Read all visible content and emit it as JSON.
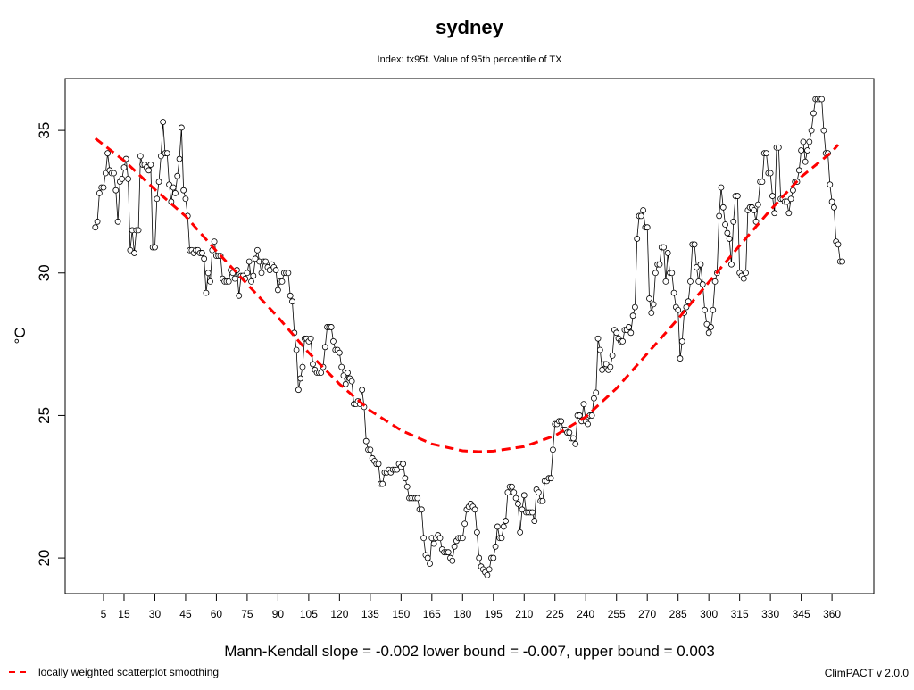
{
  "chart_data": {
    "type": "line",
    "title": "sydney",
    "subtitle": "Index: tx95t. Value of 95th percentile of TX",
    "ylabel": "°C",
    "annotation": "Mann-Kendall slope = -0.002   lower bound = -0.007,   upper bound = 0.003",
    "footer": "ClimPACT v 2.0.0",
    "legend": "bottom-left",
    "xlim": [
      -13.7,
      380.4
    ],
    "ylim": [
      18.75,
      36.82
    ],
    "xticks": [
      5,
      15,
      30,
      45,
      60,
      75,
      90,
      105,
      120,
      135,
      150,
      165,
      180,
      195,
      210,
      225,
      240,
      255,
      270,
      285,
      300,
      315,
      330,
      345,
      360
    ],
    "yticks": [
      20,
      25,
      30,
      35
    ],
    "series": [
      {
        "color": "#000000",
        "marker": "circle",
        "x": [
          1,
          2,
          3,
          4,
          5,
          6,
          7,
          8,
          9,
          10,
          11,
          12,
          13,
          14,
          15,
          16,
          17,
          18,
          19,
          20,
          21,
          22,
          23,
          24,
          25,
          26,
          27,
          28,
          29,
          30,
          31,
          32,
          33,
          34,
          35,
          36,
          37,
          38,
          39,
          40,
          41,
          42,
          43,
          44,
          45,
          46,
          47,
          48,
          49,
          50,
          51,
          52,
          53,
          54,
          55,
          56,
          57,
          58,
          59,
          60,
          61,
          62,
          63,
          64,
          65,
          66,
          67,
          68,
          69,
          70,
          71,
          72,
          73,
          74,
          75,
          76,
          77,
          78,
          79,
          80,
          81,
          82,
          83,
          84,
          85,
          86,
          87,
          88,
          89,
          90,
          91,
          92,
          93,
          94,
          95,
          96,
          97,
          98,
          99,
          100,
          101,
          102,
          103,
          104,
          105,
          106,
          107,
          108,
          109,
          110,
          111,
          112,
          113,
          114,
          115,
          116,
          117,
          118,
          119,
          120,
          121,
          122,
          123,
          124,
          125,
          126,
          127,
          128,
          129,
          130,
          131,
          132,
          133,
          134,
          135,
          136,
          137,
          138,
          139,
          140,
          141,
          142,
          143,
          144,
          145,
          146,
          147,
          148,
          149,
          150,
          151,
          152,
          153,
          154,
          155,
          156,
          157,
          158,
          159,
          160,
          161,
          162,
          163,
          164,
          165,
          166,
          167,
          168,
          169,
          170,
          171,
          172,
          173,
          174,
          175,
          176,
          177,
          178,
          179,
          180,
          181,
          182,
          183,
          184,
          185,
          186,
          187,
          188,
          189,
          190,
          191,
          192,
          193,
          194,
          195,
          196,
          197,
          198,
          199,
          200,
          201,
          202,
          203,
          204,
          205,
          206,
          207,
          208,
          209,
          210,
          211,
          212,
          213,
          214,
          215,
          216,
          217,
          218,
          219,
          220,
          221,
          222,
          223,
          224,
          225,
          226,
          227,
          228,
          229,
          230,
          231,
          232,
          233,
          234,
          235,
          236,
          237,
          238,
          239,
          240,
          241,
          242,
          243,
          244,
          245,
          246,
          247,
          248,
          249,
          250,
          251,
          252,
          253,
          254,
          255,
          256,
          257,
          258,
          259,
          260,
          261,
          262,
          263,
          264,
          265,
          266,
          267,
          268,
          269,
          270,
          271,
          272,
          273,
          274,
          275,
          276,
          277,
          278,
          279,
          280,
          281,
          282,
          283,
          284,
          285,
          286,
          287,
          288,
          289,
          290,
          291,
          292,
          293,
          294,
          295,
          296,
          297,
          298,
          299,
          300,
          301,
          302,
          303,
          304,
          305,
          306,
          307,
          308,
          309,
          310,
          311,
          312,
          313,
          314,
          315,
          316,
          317,
          318,
          319,
          320,
          321,
          322,
          323,
          324,
          325,
          326,
          327,
          328,
          329,
          330,
          331,
          332,
          333,
          334,
          335,
          336,
          337,
          338,
          339,
          340,
          341,
          342,
          343,
          344,
          345,
          346,
          347,
          348,
          349,
          350,
          351,
          352,
          353,
          354,
          355,
          356,
          357,
          358,
          359,
          360,
          361,
          362,
          363,
          364,
          365
        ],
        "values": [
          31.6,
          31.8,
          32.8,
          33.0,
          33.0,
          33.5,
          34.2,
          33.6,
          33.5,
          33.5,
          32.9,
          31.8,
          33.2,
          33.3,
          33.7,
          34.0,
          33.3,
          30.8,
          31.5,
          30.7,
          31.5,
          31.5,
          34.1,
          33.8,
          33.8,
          33.7,
          33.6,
          33.8,
          30.9,
          30.9,
          32.6,
          33.2,
          34.1,
          35.3,
          34.2,
          34.2,
          33.1,
          32.5,
          33.0,
          32.8,
          33.4,
          34.0,
          35.1,
          32.9,
          32.6,
          32.0,
          30.8,
          30.8,
          30.7,
          30.8,
          30.8,
          30.7,
          30.7,
          30.5,
          29.3,
          30.0,
          29.7,
          30.8,
          31.1,
          30.6,
          30.6,
          30.6,
          29.8,
          29.7,
          29.7,
          29.7,
          30.1,
          30.0,
          29.8,
          30.1,
          29.2,
          29.9,
          29.9,
          29.8,
          30.0,
          30.4,
          29.7,
          29.9,
          30.5,
          30.8,
          30.4,
          30.0,
          30.4,
          30.4,
          30.2,
          30.1,
          30.3,
          30.2,
          30.1,
          29.4,
          29.7,
          29.7,
          30.0,
          30.0,
          30.0,
          29.2,
          29.0,
          27.9,
          27.3,
          25.9,
          26.3,
          26.7,
          27.7,
          27.7,
          27.6,
          27.7,
          26.8,
          26.6,
          26.5,
          26.5,
          26.5,
          26.7,
          27.4,
          28.1,
          28.1,
          28.1,
          27.6,
          27.3,
          27.3,
          27.2,
          26.7,
          26.4,
          26.1,
          26.5,
          26.3,
          26.2,
          25.4,
          25.4,
          25.5,
          25.4,
          25.9,
          25.3,
          24.1,
          23.8,
          23.8,
          23.5,
          23.4,
          23.3,
          23.3,
          22.6,
          22.6,
          23.0,
          23.0,
          23.1,
          23.0,
          23.1,
          23.1,
          23.1,
          23.3,
          23.2,
          23.3,
          22.8,
          22.5,
          22.1,
          22.1,
          22.1,
          22.1,
          22.1,
          21.7,
          21.7,
          20.7,
          20.1,
          20.0,
          19.8,
          20.7,
          20.5,
          20.7,
          20.8,
          20.7,
          20.3,
          20.2,
          20.2,
          20.2,
          20.0,
          19.9,
          20.4,
          20.6,
          20.7,
          20.7,
          20.7,
          21.2,
          21.7,
          21.8,
          21.9,
          21.8,
          21.7,
          20.9,
          20.0,
          19.7,
          19.6,
          19.5,
          19.4,
          19.6,
          20.0,
          20.0,
          20.4,
          21.1,
          20.7,
          20.7,
          21.1,
          21.3,
          22.3,
          22.5,
          22.5,
          22.3,
          22.1,
          21.9,
          20.9,
          21.7,
          22.2,
          21.6,
          21.6,
          21.6,
          21.6,
          21.3,
          22.4,
          22.3,
          22.0,
          22.0,
          22.7,
          22.7,
          22.8,
          22.8,
          23.8,
          24.7,
          24.7,
          24.8,
          24.8,
          24.5,
          24.5,
          24.4,
          24.4,
          24.2,
          24.2,
          24.0,
          25.0,
          25.0,
          24.8,
          25.4,
          24.8,
          24.7,
          25.0,
          25.0,
          25.6,
          25.8,
          27.7,
          27.3,
          26.6,
          26.8,
          26.8,
          26.6,
          26.7,
          27.1,
          28.0,
          27.9,
          27.7,
          27.6,
          27.6,
          28.0,
          28.0,
          28.1,
          27.9,
          28.5,
          28.8,
          31.2,
          32.0,
          32.0,
          32.2,
          31.6,
          31.6,
          29.1,
          28.6,
          28.9,
          30.0,
          30.3,
          30.3,
          30.9,
          30.9,
          29.7,
          30.7,
          30.0,
          30.0,
          29.3,
          28.8,
          28.7,
          27.0,
          27.6,
          28.6,
          28.8,
          29.0,
          29.7,
          31.0,
          31.0,
          30.2,
          29.7,
          30.3,
          29.6,
          28.7,
          28.2,
          27.9,
          28.1,
          28.7,
          29.7,
          30.0,
          32.0,
          33.0,
          32.3,
          31.7,
          31.4,
          31.2,
          30.3,
          31.8,
          32.7,
          32.7,
          30.0,
          29.9,
          29.8,
          30.0,
          32.2,
          32.3,
          32.3,
          32.2,
          31.8,
          32.4,
          33.2,
          33.2,
          34.2,
          34.2,
          33.5,
          33.5,
          32.7,
          32.1,
          34.4,
          34.4,
          32.6,
          32.6,
          32.5,
          32.5,
          32.1,
          32.6,
          32.9,
          33.2,
          33.2,
          33.6,
          34.3,
          34.6,
          33.9,
          34.3,
          34.6,
          35.0,
          35.6,
          36.1,
          36.1,
          36.1,
          36.1,
          35.0,
          34.2,
          34.2,
          33.1,
          32.5,
          32.3,
          31.1,
          31.0,
          30.4,
          30.4
        ]
      },
      {
        "name": "locally weighted scatterplot smoothing",
        "color": "#ff0000",
        "dash": true,
        "x": [
          1,
          15,
          30,
          45,
          60,
          75,
          90,
          105,
          120,
          135,
          150,
          165,
          180,
          188,
          195,
          210,
          225,
          240,
          255,
          270,
          285,
          300,
          315,
          330,
          345,
          360,
          363
        ],
        "values": [
          34.72,
          33.94,
          32.93,
          31.99,
          30.77,
          29.61,
          28.45,
          27.2,
          26.1,
          25.17,
          24.48,
          24.0,
          23.76,
          23.73,
          23.75,
          23.91,
          24.29,
          24.95,
          25.95,
          27.17,
          28.39,
          29.68,
          30.96,
          32.21,
          33.37,
          34.25,
          34.5
        ]
      }
    ]
  }
}
